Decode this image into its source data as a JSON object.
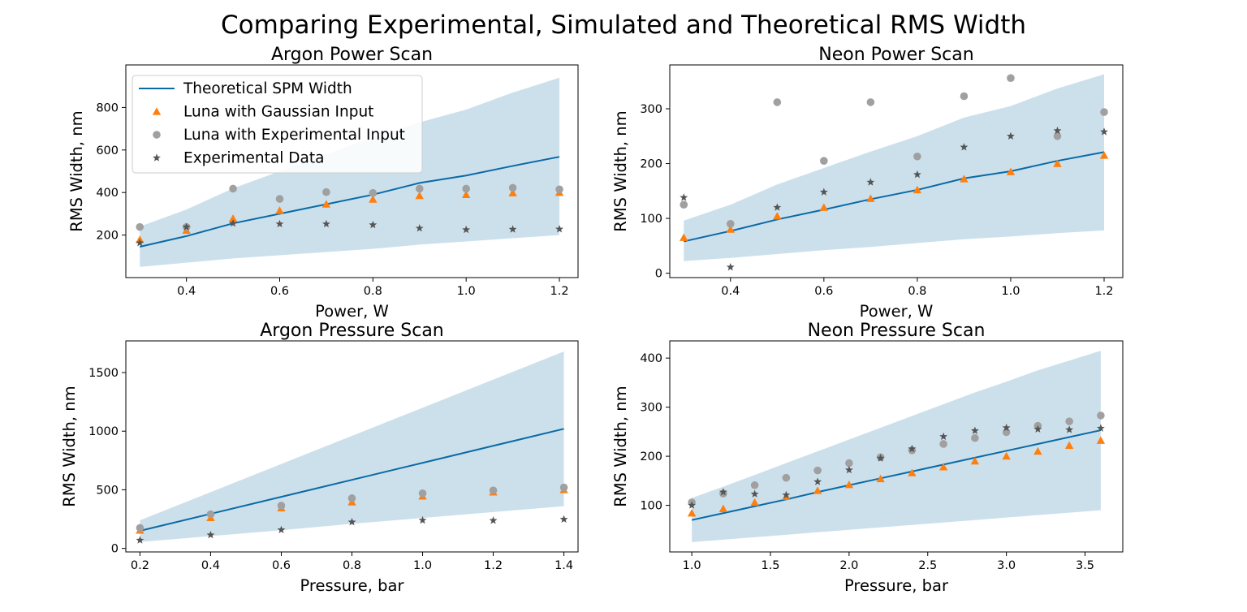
{
  "figure": {
    "title": "Comparing Experimental, Simulated and Theoretical RMS Width"
  },
  "colors": {
    "theory": "#0a6aa6",
    "band": "#cce0ec",
    "gaussian": "#ff7f0e",
    "experimental_input": "#a0a0a0",
    "experimental_data": "#555555"
  },
  "chart_data": [
    {
      "type": "line",
      "title": "Argon Power Scan",
      "xlabel": "Power, W",
      "ylabel": "RMS Width, nm",
      "xlim": [
        0.27,
        1.24
      ],
      "ylim": [
        0,
        1000
      ],
      "xticks": [
        0.4,
        0.6,
        0.8,
        1.0,
        1.2
      ],
      "yticks": [
        200,
        400,
        600,
        800
      ],
      "xtick_labels": [
        "0.4",
        "0.6",
        "0.8",
        "1.0",
        "1.2"
      ],
      "ytick_labels": [
        "200",
        "400",
        "600",
        "800"
      ],
      "legend": {
        "placement": "upper-left",
        "entries": [
          "Theoretical SPM Width",
          "Luna with Gaussian Input",
          "Luna with Experimental Input",
          "Experimental Data"
        ]
      },
      "x": [
        0.3,
        0.4,
        0.5,
        0.6,
        0.7,
        0.8,
        0.9,
        1.0,
        1.1,
        1.2
      ],
      "band_lower": [
        50,
        70,
        90,
        105,
        120,
        135,
        155,
        170,
        185,
        200
      ],
      "band_upper": [
        240,
        320,
        420,
        500,
        580,
        660,
        730,
        790,
        870,
        940
      ],
      "series": [
        {
          "name": "Theoretical SPM Width",
          "kind": "line",
          "values": [
            145,
            195,
            255,
            300,
            345,
            390,
            445,
            480,
            525,
            568
          ]
        },
        {
          "name": "Luna with Gaussian Input",
          "kind": "triangle",
          "values": [
            178,
            222,
            278,
            315,
            345,
            368,
            385,
            390,
            398,
            400
          ]
        },
        {
          "name": "Luna with Experimental Input",
          "kind": "circle",
          "values": [
            238,
            238,
            418,
            370,
            402,
            398,
            418,
            418,
            422,
            415
          ]
        },
        {
          "name": "Experimental Data",
          "kind": "star",
          "values": [
            163,
            238,
            255,
            252,
            252,
            248,
            232,
            225,
            227,
            228
          ]
        }
      ]
    },
    {
      "type": "line",
      "title": "Neon Power Scan",
      "xlabel": "Power, W",
      "ylabel": "RMS Width, nm",
      "xlim": [
        0.27,
        1.24
      ],
      "ylim": [
        -8,
        380
      ],
      "xticks": [
        0.4,
        0.6,
        0.8,
        1.0,
        1.2
      ],
      "yticks": [
        0,
        100,
        200,
        300
      ],
      "xtick_labels": [
        "0.4",
        "0.6",
        "0.8",
        "1.0",
        "1.2"
      ],
      "ytick_labels": [
        "0",
        "100",
        "200",
        "300"
      ],
      "x": [
        0.3,
        0.4,
        0.5,
        0.6,
        0.7,
        0.8,
        0.9,
        1.0,
        1.1,
        1.2
      ],
      "band_lower": [
        22,
        28,
        35,
        42,
        48,
        55,
        62,
        67,
        73,
        78
      ],
      "band_upper": [
        96,
        125,
        162,
        192,
        222,
        250,
        284,
        305,
        337,
        363
      ],
      "series": [
        {
          "name": "Theoretical SPM Width",
          "kind": "line",
          "values": [
            58,
            77,
            98,
            116,
            135,
            152,
            173,
            186,
            205,
            221
          ]
        },
        {
          "name": "Luna with Gaussian Input",
          "kind": "triangle",
          "values": [
            65,
            80,
            104,
            120,
            136,
            152,
            172,
            185,
            200,
            215
          ]
        },
        {
          "name": "Luna with Experimental Input",
          "kind": "circle",
          "values": [
            125,
            90,
            312,
            205,
            312,
            213,
            323,
            356,
            250,
            294
          ]
        },
        {
          "name": "Experimental Data",
          "kind": "star",
          "values": [
            138,
            11,
            120,
            148,
            166,
            180,
            230,
            250,
            260,
            258
          ]
        }
      ]
    },
    {
      "type": "line",
      "title": "Argon Pressure Scan",
      "xlabel": "Pressure, bar",
      "ylabel": "RMS Width, nm",
      "xlim": [
        0.16,
        1.44
      ],
      "ylim": [
        -30,
        1770
      ],
      "xticks": [
        0.2,
        0.4,
        0.6,
        0.8,
        1.0,
        1.2,
        1.4
      ],
      "yticks": [
        0,
        500,
        1000,
        1500
      ],
      "xtick_labels": [
        "0.2",
        "0.4",
        "0.6",
        "0.8",
        "1.0",
        "1.2",
        "1.4"
      ],
      "ytick_labels": [
        "0",
        "500",
        "1000",
        "1500"
      ],
      "x": [
        0.2,
        0.4,
        0.6,
        0.8,
        1.0,
        1.2,
        1.4
      ],
      "band_lower": [
        55,
        105,
        155,
        210,
        260,
        310,
        360
      ],
      "band_upper": [
        240,
        480,
        720,
        960,
        1200,
        1440,
        1680
      ],
      "series": [
        {
          "name": "Theoretical SPM Width",
          "kind": "line",
          "values": [
            150,
            295,
            440,
            585,
            730,
            875,
            1020
          ]
        },
        {
          "name": "Luna with Gaussian Input",
          "kind": "triangle",
          "values": [
            155,
            262,
            345,
            395,
            445,
            480,
            500
          ]
        },
        {
          "name": "Luna with Experimental Input",
          "kind": "circle",
          "values": [
            175,
            292,
            365,
            428,
            470,
            495,
            520
          ]
        },
        {
          "name": "Experimental Data",
          "kind": "star",
          "values": [
            70,
            115,
            158,
            225,
            240,
            238,
            248
          ]
        }
      ]
    },
    {
      "type": "line",
      "title": "Neon Pressure Scan",
      "xlabel": "Pressure, bar",
      "ylabel": "RMS Width, nm",
      "xlim": [
        0.86,
        3.74
      ],
      "ylim": [
        5,
        435
      ],
      "xticks": [
        1.0,
        1.5,
        2.0,
        2.5,
        3.0,
        3.5
      ],
      "yticks": [
        100,
        200,
        300,
        400
      ],
      "xtick_labels": [
        "1.0",
        "1.5",
        "2.0",
        "2.5",
        "3.0",
        "3.5"
      ],
      "ytick_labels": [
        "100",
        "200",
        "300",
        "400"
      ],
      "x": [
        1.0,
        1.2,
        1.4,
        1.6,
        1.8,
        2.0,
        2.2,
        2.4,
        2.6,
        2.8,
        3.0,
        3.2,
        3.4,
        3.6
      ],
      "band_lower": [
        25,
        30,
        35,
        40,
        45,
        50,
        55,
        60,
        65,
        70,
        75,
        80,
        85,
        90
      ],
      "band_upper": [
        115,
        138,
        162,
        186,
        210,
        234,
        258,
        282,
        306,
        330,
        352,
        375,
        395,
        415
      ],
      "series": [
        {
          "name": "Theoretical SPM Width",
          "kind": "line",
          "values": [
            70,
            84,
            98,
            112,
            127,
            141,
            155,
            169,
            183,
            197,
            211,
            225,
            239,
            253
          ]
        },
        {
          "name": "Luna with Gaussian Input",
          "kind": "triangle",
          "values": [
            84,
            93,
            106,
            118,
            130,
            142,
            154,
            166,
            178,
            190,
            200,
            210,
            222,
            232
          ]
        },
        {
          "name": "Luna with Experimental Input",
          "kind": "circle",
          "values": [
            106,
            124,
            141,
            156,
            171,
            186,
            198,
            212,
            225,
            237,
            249,
            262,
            271,
            283
          ]
        },
        {
          "name": "Experimental Data",
          "kind": "star",
          "values": [
            100,
            127,
            123,
            121,
            148,
            172,
            196,
            215,
            240,
            252,
            258,
            255,
            254,
            257
          ]
        }
      ]
    }
  ]
}
